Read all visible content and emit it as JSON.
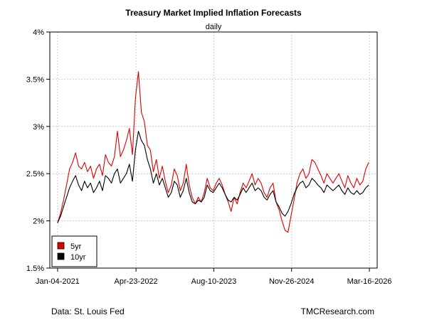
{
  "chart_data": {
    "type": "line",
    "title": "Treasury Market Implied Inflation Forecasts",
    "subtitle": "daily",
    "xlabel": "",
    "ylabel": "",
    "y_tick_labels": [
      "1.5%",
      "2%",
      "2.5%",
      "3%",
      "3.5%",
      "4%"
    ],
    "y_ticks": [
      1.5,
      2.0,
      2.5,
      3.0,
      3.5,
      4.0
    ],
    "ylim": [
      1.5,
      4.0
    ],
    "x_tick_labels": [
      "Jan-04-2021",
      "Apr-23-2022",
      "Aug-10-2023",
      "Nov-26-2024",
      "Mar-16-2026"
    ],
    "x_ticks": [
      2021.0,
      2022.31,
      2023.61,
      2024.91,
      2026.21
    ],
    "xlim": [
      2020.87,
      2026.34
    ],
    "grid": true,
    "legend_position": "bottom-left",
    "source": "Data: St. Louis Fed",
    "credit": "TMCResearch.com",
    "colors": {
      "5yr": "#dd0000",
      "10yr": "#000000"
    },
    "series": [
      {
        "name": "5yr",
        "x": [
          2021.0,
          2021.05,
          2021.1,
          2021.15,
          2021.2,
          2021.25,
          2021.3,
          2021.35,
          2021.4,
          2021.45,
          2021.5,
          2021.55,
          2021.6,
          2021.65,
          2021.7,
          2021.75,
          2021.8,
          2021.85,
          2021.9,
          2021.95,
          2022.0,
          2022.05,
          2022.1,
          2022.15,
          2022.2,
          2022.25,
          2022.3,
          2022.35,
          2022.4,
          2022.45,
          2022.5,
          2022.55,
          2022.6,
          2022.65,
          2022.7,
          2022.75,
          2022.8,
          2022.85,
          2022.9,
          2022.95,
          2023.0,
          2023.05,
          2023.1,
          2023.15,
          2023.2,
          2023.25,
          2023.3,
          2023.35,
          2023.4,
          2023.45,
          2023.5,
          2023.55,
          2023.6,
          2023.65,
          2023.7,
          2023.75,
          2023.8,
          2023.85,
          2023.9,
          2023.95,
          2024.0,
          2024.05,
          2024.1,
          2024.15,
          2024.2,
          2024.25,
          2024.3,
          2024.35,
          2024.4,
          2024.45,
          2024.5,
          2024.55,
          2024.6,
          2024.65,
          2024.7,
          2024.75,
          2024.8,
          2024.85,
          2024.9,
          2024.95,
          2025.0,
          2025.05,
          2025.1,
          2025.15,
          2025.2,
          2025.25,
          2025.3,
          2025.35,
          2025.4,
          2025.45,
          2025.5,
          2025.55,
          2025.6,
          2025.65,
          2025.7,
          2025.75,
          2025.8,
          2025.85,
          2025.9,
          2025.95,
          2026.0,
          2026.05,
          2026.1,
          2026.15,
          2026.2
        ],
        "values": [
          1.98,
          2.08,
          2.22,
          2.38,
          2.55,
          2.62,
          2.72,
          2.58,
          2.55,
          2.62,
          2.52,
          2.58,
          2.45,
          2.55,
          2.6,
          2.48,
          2.7,
          2.62,
          2.58,
          2.68,
          2.95,
          2.68,
          2.75,
          2.85,
          2.98,
          2.7,
          3.3,
          3.58,
          3.15,
          3.05,
          2.8,
          2.75,
          2.52,
          2.65,
          2.45,
          2.58,
          2.42,
          2.3,
          2.38,
          2.55,
          2.48,
          2.32,
          2.4,
          2.6,
          2.38,
          2.25,
          2.18,
          2.25,
          2.2,
          2.3,
          2.45,
          2.35,
          2.32,
          2.4,
          2.45,
          2.38,
          2.28,
          2.2,
          2.1,
          2.25,
          2.18,
          2.3,
          2.4,
          2.35,
          2.42,
          2.5,
          2.38,
          2.45,
          2.4,
          2.3,
          2.25,
          2.35,
          2.4,
          2.2,
          2.12,
          2.0,
          1.9,
          1.88,
          2.05,
          2.22,
          2.4,
          2.5,
          2.55,
          2.45,
          2.5,
          2.65,
          2.62,
          2.55,
          2.48,
          2.4,
          2.5,
          2.45,
          2.4,
          2.45,
          2.5,
          2.42,
          2.35,
          2.48,
          2.4,
          2.35,
          2.45,
          2.38,
          2.42,
          2.55,
          2.62
        ]
      },
      {
        "name": "10yr",
        "x": [
          2021.0,
          2021.05,
          2021.1,
          2021.15,
          2021.2,
          2021.25,
          2021.3,
          2021.35,
          2021.4,
          2021.45,
          2021.5,
          2021.55,
          2021.6,
          2021.65,
          2021.7,
          2021.75,
          2021.8,
          2021.85,
          2021.9,
          2021.95,
          2022.0,
          2022.05,
          2022.1,
          2022.15,
          2022.2,
          2022.25,
          2022.3,
          2022.35,
          2022.4,
          2022.45,
          2022.5,
          2022.55,
          2022.6,
          2022.65,
          2022.7,
          2022.75,
          2022.8,
          2022.85,
          2022.9,
          2022.95,
          2023.0,
          2023.05,
          2023.1,
          2023.15,
          2023.2,
          2023.25,
          2023.3,
          2023.35,
          2023.4,
          2023.45,
          2023.5,
          2023.55,
          2023.6,
          2023.65,
          2023.7,
          2023.75,
          2023.8,
          2023.85,
          2023.9,
          2023.95,
          2024.0,
          2024.05,
          2024.1,
          2024.15,
          2024.2,
          2024.25,
          2024.3,
          2024.35,
          2024.4,
          2024.45,
          2024.5,
          2024.55,
          2024.6,
          2024.65,
          2024.7,
          2024.75,
          2024.8,
          2024.85,
          2024.9,
          2024.95,
          2025.0,
          2025.05,
          2025.1,
          2025.15,
          2025.2,
          2025.25,
          2025.3,
          2025.35,
          2025.4,
          2025.45,
          2025.5,
          2025.55,
          2025.6,
          2025.65,
          2025.7,
          2025.75,
          2025.8,
          2025.85,
          2025.9,
          2025.95,
          2026.0,
          2026.05,
          2026.1,
          2026.15,
          2026.2
        ],
        "values": [
          1.98,
          2.05,
          2.15,
          2.25,
          2.35,
          2.42,
          2.48,
          2.38,
          2.32,
          2.42,
          2.35,
          2.4,
          2.3,
          2.35,
          2.42,
          2.32,
          2.48,
          2.45,
          2.4,
          2.5,
          2.55,
          2.4,
          2.45,
          2.5,
          2.6,
          2.42,
          2.75,
          2.95,
          2.85,
          2.8,
          2.65,
          2.55,
          2.4,
          2.5,
          2.38,
          2.45,
          2.35,
          2.25,
          2.3,
          2.42,
          2.38,
          2.25,
          2.32,
          2.45,
          2.3,
          2.2,
          2.18,
          2.22,
          2.2,
          2.25,
          2.38,
          2.32,
          2.3,
          2.35,
          2.4,
          2.35,
          2.28,
          2.22,
          2.2,
          2.25,
          2.22,
          2.28,
          2.35,
          2.3,
          2.35,
          2.4,
          2.32,
          2.35,
          2.32,
          2.25,
          2.22,
          2.28,
          2.32,
          2.2,
          2.15,
          2.08,
          2.05,
          2.1,
          2.18,
          2.28,
          2.35,
          2.4,
          2.42,
          2.35,
          2.38,
          2.45,
          2.42,
          2.38,
          2.35,
          2.3,
          2.38,
          2.35,
          2.32,
          2.35,
          2.38,
          2.32,
          2.28,
          2.35,
          2.3,
          2.28,
          2.32,
          2.28,
          2.3,
          2.35,
          2.38
        ]
      }
    ]
  }
}
